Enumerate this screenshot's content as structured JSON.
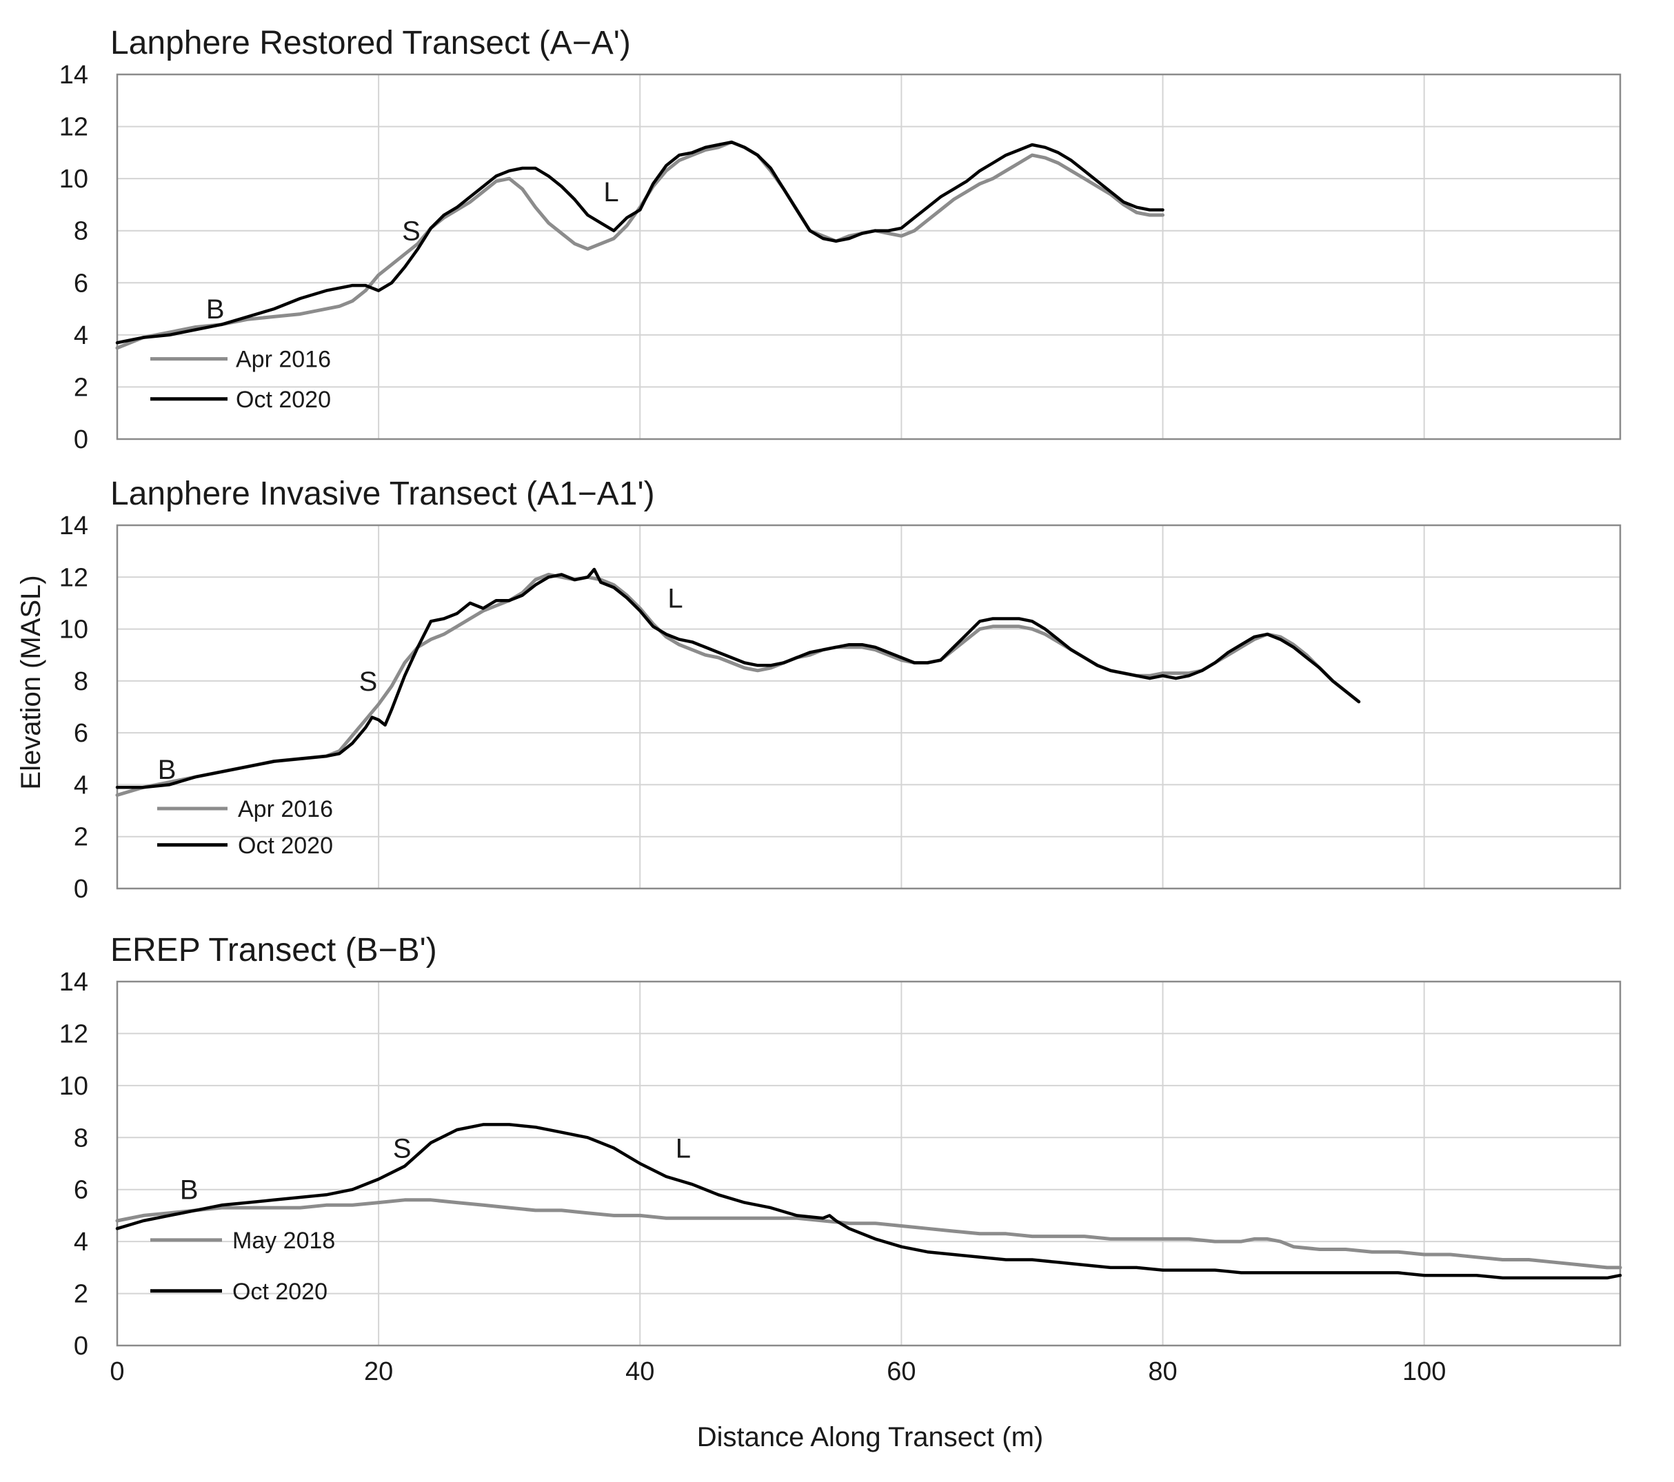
{
  "figure": {
    "ylabel": "Elevation (MASL)",
    "xlabel": "Distance Along Transect  (m)"
  },
  "chart_data": [
    {
      "type": "line",
      "title": "Lanphere Restored Transect (A−A')",
      "xlabel": "Distance Along Transect  (m)",
      "ylabel": "Elevation (MASL)",
      "xlim": [
        0,
        115
      ],
      "ylim": [
        0,
        14
      ],
      "xticks": [
        0,
        20,
        40,
        60,
        80,
        100
      ],
      "yticks": [
        0,
        2,
        4,
        6,
        8,
        10,
        12,
        14
      ],
      "grid": true,
      "legend_position": "bottom-left",
      "series": [
        {
          "name": "Apr 2016",
          "color": "#8c8c8c",
          "x": [
            0,
            2,
            4,
            6,
            8,
            10,
            12,
            14,
            16,
            17,
            18,
            19,
            20,
            21,
            22,
            23,
            24,
            25,
            26,
            27,
            28,
            29,
            30,
            31,
            32,
            33,
            34,
            35,
            36,
            37,
            38,
            39,
            40,
            41,
            42,
            43,
            44,
            45,
            46,
            47,
            48,
            49,
            50,
            51,
            52,
            53,
            54,
            55,
            56,
            57,
            58,
            59,
            60,
            61,
            62,
            63,
            64,
            65,
            66,
            67,
            68,
            69,
            70,
            71,
            72,
            73,
            74,
            75,
            76,
            77,
            78,
            79,
            80
          ],
          "y": [
            3.5,
            3.9,
            4.1,
            4.3,
            4.4,
            4.6,
            4.7,
            4.8,
            5.0,
            5.1,
            5.3,
            5.7,
            6.3,
            6.7,
            7.1,
            7.5,
            8.1,
            8.5,
            8.8,
            9.1,
            9.5,
            9.9,
            10.0,
            9.6,
            8.9,
            8.3,
            7.9,
            7.5,
            7.3,
            7.5,
            7.7,
            8.2,
            8.9,
            9.7,
            10.3,
            10.7,
            10.9,
            11.1,
            11.2,
            11.4,
            11.2,
            10.9,
            10.3,
            9.6,
            8.8,
            8.0,
            7.8,
            7.6,
            7.8,
            7.9,
            8.0,
            7.9,
            7.8,
            8.0,
            8.4,
            8.8,
            9.2,
            9.5,
            9.8,
            10.0,
            10.3,
            10.6,
            10.9,
            10.8,
            10.6,
            10.3,
            10.0,
            9.7,
            9.4,
            9.0,
            8.7,
            8.6,
            8.6
          ]
        },
        {
          "name": "Oct 2020",
          "color": "#000000",
          "x": [
            0,
            2,
            4,
            6,
            8,
            10,
            12,
            14,
            16,
            17,
            18,
            19,
            20,
            21,
            22,
            23,
            24,
            25,
            26,
            27,
            28,
            29,
            30,
            31,
            32,
            33,
            34,
            35,
            36,
            37,
            38,
            39,
            40,
            41,
            42,
            43,
            44,
            45,
            46,
            47,
            48,
            49,
            50,
            51,
            52,
            53,
            54,
            55,
            56,
            57,
            58,
            59,
            60,
            61,
            62,
            63,
            64,
            65,
            66,
            67,
            68,
            69,
            70,
            71,
            72,
            73,
            74,
            75,
            76,
            77,
            78,
            79,
            80
          ],
          "y": [
            3.7,
            3.9,
            4.0,
            4.2,
            4.4,
            4.7,
            5.0,
            5.4,
            5.7,
            5.8,
            5.9,
            5.9,
            5.7,
            6.0,
            6.6,
            7.3,
            8.1,
            8.6,
            8.9,
            9.3,
            9.7,
            10.1,
            10.3,
            10.4,
            10.4,
            10.1,
            9.7,
            9.2,
            8.6,
            8.3,
            8.0,
            8.5,
            8.8,
            9.8,
            10.5,
            10.9,
            11.0,
            11.2,
            11.3,
            11.4,
            11.2,
            10.9,
            10.4,
            9.6,
            8.8,
            8.0,
            7.7,
            7.6,
            7.7,
            7.9,
            8.0,
            8.0,
            8.1,
            8.5,
            8.9,
            9.3,
            9.6,
            9.9,
            10.3,
            10.6,
            10.9,
            11.1,
            11.3,
            11.2,
            11.0,
            10.7,
            10.3,
            9.9,
            9.5,
            9.1,
            8.9,
            8.8,
            8.8
          ]
        }
      ],
      "annotations": [
        {
          "text": "B",
          "x": 7.5,
          "y": 5.0
        },
        {
          "text": "S",
          "x": 22.5,
          "y": 8.0
        },
        {
          "text": "L",
          "x": 37.8,
          "y": 9.5
        }
      ]
    },
    {
      "type": "line",
      "title": "Lanphere Invasive Transect (A1−A1')",
      "xlabel": "Distance Along Transect  (m)",
      "ylabel": "Elevation (MASL)",
      "xlim": [
        0,
        115
      ],
      "ylim": [
        0,
        14
      ],
      "xticks": [
        0,
        20,
        40,
        60,
        80,
        100
      ],
      "yticks": [
        0,
        2,
        4,
        6,
        8,
        10,
        12,
        14
      ],
      "grid": true,
      "legend_position": "bottom-left",
      "series": [
        {
          "name": "Apr 2016",
          "color": "#8c8c8c",
          "x": [
            0,
            2,
            4,
            6,
            8,
            10,
            12,
            14,
            16,
            17,
            18,
            19,
            20,
            21,
            22,
            23,
            24,
            25,
            26,
            27,
            28,
            29,
            30,
            31,
            32,
            33,
            34,
            35,
            36,
            37,
            38,
            39,
            40,
            41,
            42,
            43,
            44,
            45,
            46,
            47,
            48,
            49,
            50,
            51,
            52,
            53,
            54,
            55,
            56,
            57,
            58,
            59,
            60,
            61,
            62,
            63,
            64,
            65,
            66,
            67,
            68,
            69,
            70,
            71,
            72,
            73,
            74,
            75,
            76,
            77,
            78,
            79,
            80,
            81,
            82,
            83,
            84,
            85,
            86,
            87,
            88,
            89,
            90,
            91,
            92,
            93,
            94,
            95
          ],
          "y": [
            3.6,
            3.9,
            4.1,
            4.3,
            4.5,
            4.7,
            4.9,
            5.0,
            5.1,
            5.3,
            5.9,
            6.5,
            7.1,
            7.8,
            8.7,
            9.3,
            9.6,
            9.8,
            10.1,
            10.4,
            10.7,
            10.9,
            11.1,
            11.4,
            11.9,
            12.1,
            12.0,
            11.9,
            12.0,
            11.9,
            11.7,
            11.3,
            10.8,
            10.2,
            9.7,
            9.4,
            9.2,
            9.0,
            8.9,
            8.7,
            8.5,
            8.4,
            8.5,
            8.7,
            8.9,
            9.0,
            9.2,
            9.3,
            9.3,
            9.3,
            9.2,
            9.0,
            8.8,
            8.7,
            8.7,
            8.8,
            9.2,
            9.6,
            10.0,
            10.1,
            10.1,
            10.1,
            10.0,
            9.8,
            9.5,
            9.2,
            8.9,
            8.6,
            8.4,
            8.3,
            8.2,
            8.2,
            8.3,
            8.3,
            8.3,
            8.4,
            8.7,
            9.0,
            9.3,
            9.6,
            9.8,
            9.7,
            9.4,
            9.0,
            8.5,
            8.0,
            7.6,
            7.2
          ]
        },
        {
          "name": "Oct 2020",
          "color": "#000000",
          "x": [
            0,
            2,
            4,
            6,
            8,
            10,
            12,
            14,
            16,
            17,
            18,
            19,
            19.5,
            20,
            20.5,
            21,
            22,
            23,
            24,
            25,
            26,
            27,
            28,
            29,
            30,
            31,
            32,
            33,
            34,
            35,
            36,
            36.5,
            37,
            38,
            39,
            40,
            41,
            42,
            43,
            44,
            45,
            46,
            47,
            48,
            49,
            50,
            51,
            52,
            53,
            54,
            55,
            56,
            57,
            58,
            59,
            60,
            61,
            62,
            63,
            64,
            65,
            66,
            67,
            68,
            69,
            70,
            71,
            72,
            73,
            74,
            75,
            76,
            77,
            78,
            79,
            80,
            81,
            82,
            83,
            84,
            85,
            86,
            87,
            88,
            89,
            90,
            91,
            92,
            93,
            94,
            95
          ],
          "y": [
            3.9,
            3.9,
            4.0,
            4.3,
            4.5,
            4.7,
            4.9,
            5.0,
            5.1,
            5.2,
            5.6,
            6.2,
            6.6,
            6.5,
            6.3,
            6.9,
            8.2,
            9.3,
            10.3,
            10.4,
            10.6,
            11.0,
            10.8,
            11.1,
            11.1,
            11.3,
            11.7,
            12.0,
            12.1,
            11.9,
            12.0,
            12.3,
            11.8,
            11.6,
            11.2,
            10.7,
            10.1,
            9.8,
            9.6,
            9.5,
            9.3,
            9.1,
            8.9,
            8.7,
            8.6,
            8.6,
            8.7,
            8.9,
            9.1,
            9.2,
            9.3,
            9.4,
            9.4,
            9.3,
            9.1,
            8.9,
            8.7,
            8.7,
            8.8,
            9.3,
            9.8,
            10.3,
            10.4,
            10.4,
            10.4,
            10.3,
            10.0,
            9.6,
            9.2,
            8.9,
            8.6,
            8.4,
            8.3,
            8.2,
            8.1,
            8.2,
            8.1,
            8.2,
            8.4,
            8.7,
            9.1,
            9.4,
            9.7,
            9.8,
            9.6,
            9.3,
            8.9,
            8.5,
            8.0,
            7.6,
            7.2
          ]
        }
      ],
      "annotations": [
        {
          "text": "B",
          "x": 3.8,
          "y": 4.6
        },
        {
          "text": "S",
          "x": 19.2,
          "y": 8.0
        },
        {
          "text": "L",
          "x": 42.7,
          "y": 11.2
        }
      ]
    },
    {
      "type": "line",
      "title": "EREP Transect (B−B')",
      "xlabel": "Distance Along Transect  (m)",
      "ylabel": "Elevation (MASL)",
      "xlim": [
        0,
        115
      ],
      "ylim": [
        0,
        14
      ],
      "xticks": [
        0,
        20,
        40,
        60,
        80,
        100
      ],
      "yticks": [
        0,
        2,
        4,
        6,
        8,
        10,
        12,
        14
      ],
      "grid": true,
      "legend_position": "bottom-left",
      "series": [
        {
          "name": "May 2018",
          "color": "#8c8c8c",
          "x": [
            0,
            2,
            4,
            6,
            8,
            10,
            12,
            14,
            16,
            18,
            20,
            22,
            23,
            24,
            26,
            28,
            30,
            32,
            34,
            36,
            38,
            40,
            42,
            44,
            46,
            48,
            50,
            52,
            54,
            56,
            58,
            60,
            62,
            64,
            66,
            68,
            70,
            72,
            74,
            76,
            78,
            80,
            82,
            84,
            86,
            87,
            88,
            89,
            90,
            92,
            94,
            96,
            98,
            100,
            102,
            104,
            106,
            108,
            110,
            112,
            114,
            115
          ],
          "y": [
            4.8,
            5.0,
            5.1,
            5.2,
            5.3,
            5.3,
            5.3,
            5.3,
            5.4,
            5.4,
            5.5,
            5.6,
            5.6,
            5.6,
            5.5,
            5.4,
            5.3,
            5.2,
            5.2,
            5.1,
            5.0,
            5.0,
            4.9,
            4.9,
            4.9,
            4.9,
            4.9,
            4.9,
            4.8,
            4.7,
            4.7,
            4.6,
            4.5,
            4.4,
            4.3,
            4.3,
            4.2,
            4.2,
            4.2,
            4.1,
            4.1,
            4.1,
            4.1,
            4.0,
            4.0,
            4.1,
            4.1,
            4.0,
            3.8,
            3.7,
            3.7,
            3.6,
            3.6,
            3.5,
            3.5,
            3.4,
            3.3,
            3.3,
            3.2,
            3.1,
            3.0,
            3.0
          ]
        },
        {
          "name": "Oct 2020",
          "color": "#000000",
          "x": [
            0,
            2,
            4,
            6,
            8,
            10,
            12,
            14,
            16,
            18,
            20,
            22,
            24,
            26,
            28,
            30,
            32,
            34,
            36,
            38,
            40,
            42,
            44,
            46,
            48,
            50,
            52,
            54,
            54.5,
            55,
            56,
            58,
            60,
            62,
            64,
            66,
            68,
            70,
            72,
            74,
            76,
            78,
            80,
            82,
            84,
            86,
            88,
            90,
            92,
            94,
            96,
            98,
            100,
            102,
            104,
            106,
            108,
            110,
            112,
            114,
            115
          ],
          "y": [
            4.5,
            4.8,
            5.0,
            5.2,
            5.4,
            5.5,
            5.6,
            5.7,
            5.8,
            6.0,
            6.4,
            6.9,
            7.8,
            8.3,
            8.5,
            8.5,
            8.4,
            8.2,
            8.0,
            7.6,
            7.0,
            6.5,
            6.2,
            5.8,
            5.5,
            5.3,
            5.0,
            4.9,
            5.0,
            4.8,
            4.5,
            4.1,
            3.8,
            3.6,
            3.5,
            3.4,
            3.3,
            3.3,
            3.2,
            3.1,
            3.0,
            3.0,
            2.9,
            2.9,
            2.9,
            2.8,
            2.8,
            2.8,
            2.8,
            2.8,
            2.8,
            2.8,
            2.7,
            2.7,
            2.7,
            2.6,
            2.6,
            2.6,
            2.6,
            2.6,
            2.7
          ]
        }
      ],
      "annotations": [
        {
          "text": "B",
          "x": 5.5,
          "y": 6.0
        },
        {
          "text": "S",
          "x": 21.8,
          "y": 7.6
        },
        {
          "text": "L",
          "x": 43.3,
          "y": 7.6
        }
      ]
    }
  ]
}
